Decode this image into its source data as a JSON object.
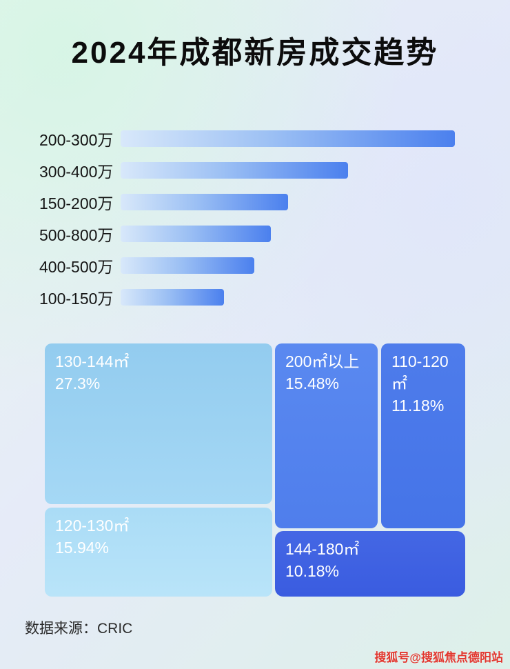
{
  "page": {
    "title": "2024年成都新房成交趋势",
    "source_label": "数据来源：CRIC",
    "watermark": "搜狐号@搜狐焦点德阳站"
  },
  "chart_data": [
    {
      "type": "bar",
      "title": "2024年成都新房成交趋势",
      "orientation": "horizontal",
      "categories": [
        "200-300万",
        "300-400万",
        "150-200万",
        "500-800万",
        "400-500万",
        "100-150万"
      ],
      "values": [
        100,
        68,
        50,
        45,
        40,
        31
      ],
      "value_note": "no numeric axis shown in image; values are bar lengths as percent of the longest bar",
      "xlabel": "",
      "ylabel": "",
      "grid": false,
      "legend": false
    },
    {
      "type": "treemap",
      "items": [
        {
          "label": "130-144㎡",
          "percent_text": "27.3%",
          "value": 27.3
        },
        {
          "label": "120-130㎡",
          "percent_text": "15.94%",
          "value": 15.94
        },
        {
          "label": "200㎡以上",
          "percent_text": "15.48%",
          "value": 15.48
        },
        {
          "label": "110-120㎡",
          "percent_text": "11.18%",
          "value": 11.18
        },
        {
          "label": "144-180㎡",
          "percent_text": "10.18%",
          "value": 10.18
        }
      ]
    }
  ],
  "colors": {
    "bar_gradient_start": "#d8e8fa",
    "bar_gradient_end": "#4b80ee",
    "block_130_144": "#9bd0f1",
    "block_120_130": "#b2dff7",
    "block_200_plus": "#5484ee",
    "block_110_120": "#4a78e9",
    "block_144_180": "#3f61e2",
    "watermark_red": "#e2372f",
    "title_text": "#0c0c0c"
  }
}
